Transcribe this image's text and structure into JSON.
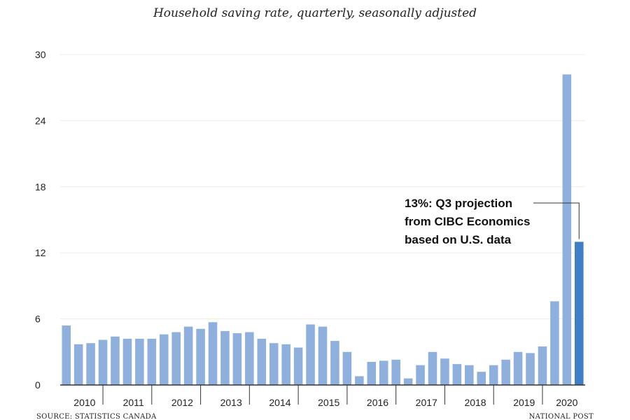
{
  "chart_data": {
    "type": "bar",
    "title": "Household saving rate, quarterly, seasonally adjusted",
    "xlabel": "",
    "ylabel": "",
    "ylim": [
      0,
      30
    ],
    "yticks": [
      "0",
      "6",
      "12",
      "18",
      "24",
      "30"
    ],
    "years": [
      "2010",
      "2011",
      "2012",
      "2013",
      "2014",
      "2015",
      "2016",
      "2017",
      "2018",
      "2019",
      "2020"
    ],
    "quarters_per_year": 4,
    "values": [
      5.4,
      3.7,
      3.8,
      4.1,
      4.4,
      4.2,
      4.2,
      4.2,
      4.6,
      4.8,
      5.3,
      5.1,
      5.7,
      4.9,
      4.7,
      4.8,
      4.2,
      3.8,
      3.7,
      3.4,
      5.5,
      5.3,
      4.0,
      3.0,
      0.8,
      2.1,
      2.2,
      2.3,
      0.6,
      1.8,
      3.0,
      2.4,
      1.9,
      1.8,
      1.2,
      1.8,
      2.3,
      3.0,
      2.9,
      3.5,
      7.6,
      28.2,
      13.0
    ],
    "highlight_index": 42,
    "bar_color": "#8fb0dc",
    "highlight_color": "#3f7fc5",
    "grid": true,
    "annotation": {
      "lines": [
        "13%: Q3 projection",
        "from CIBC Economics",
        "based on U.S. data"
      ]
    },
    "source": "SOURCE: STATISTICS CANADA",
    "credit": "NATIONAL POST"
  }
}
